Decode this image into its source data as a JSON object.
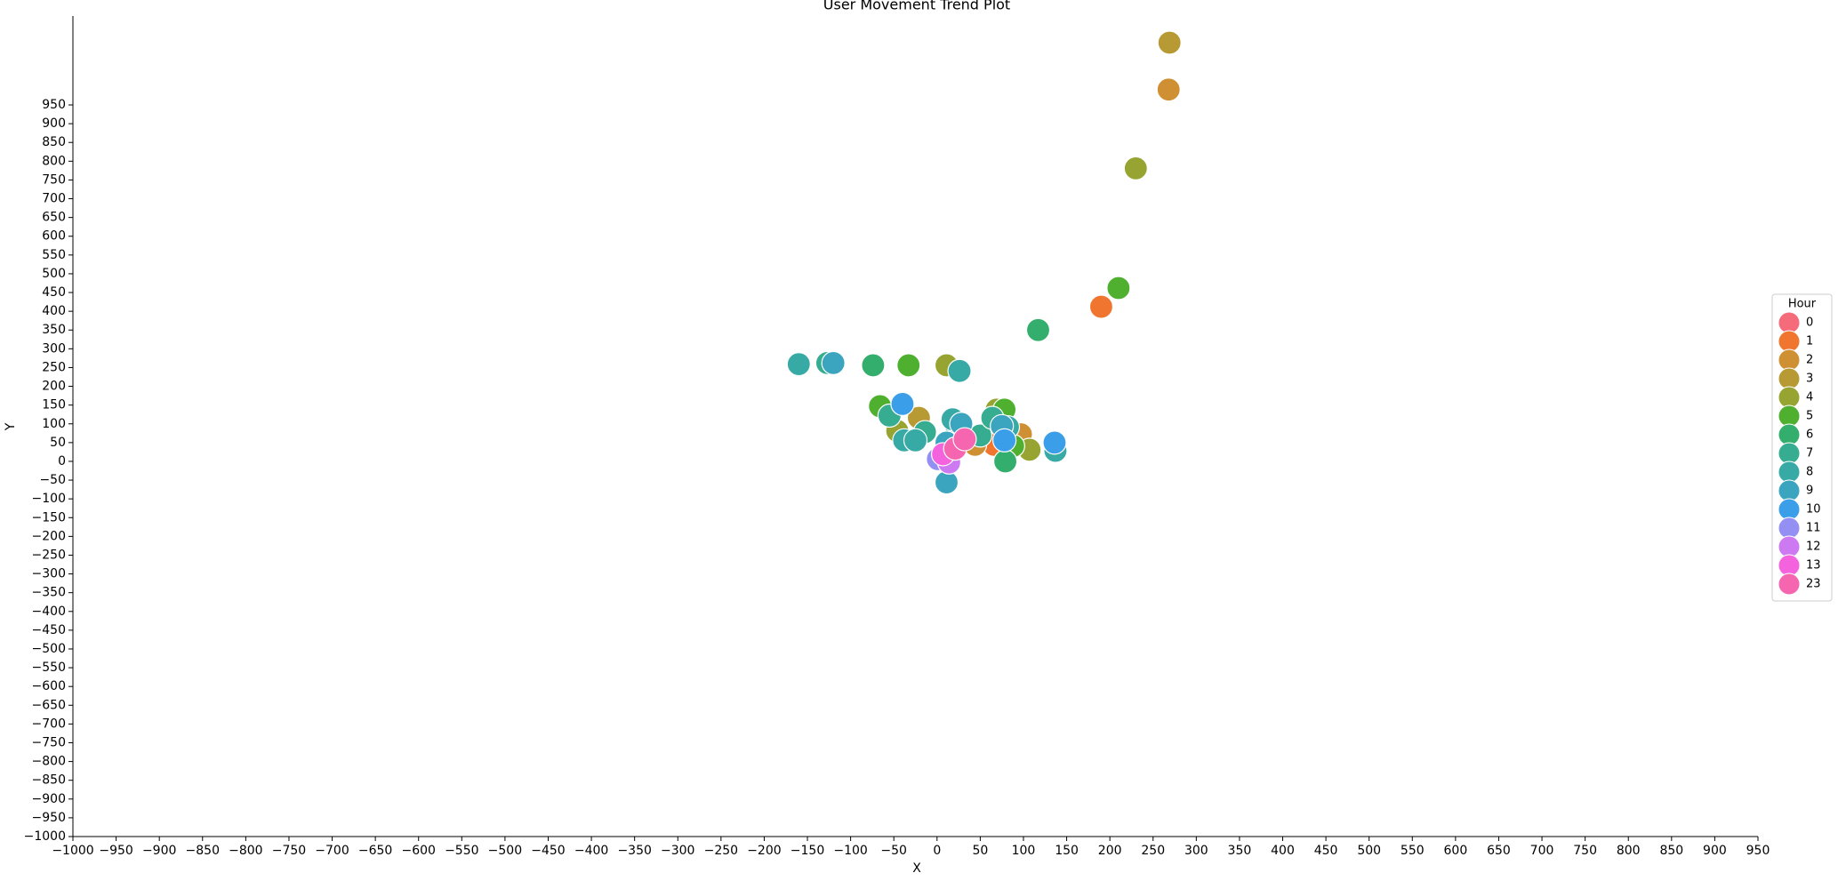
{
  "chart_data": {
    "type": "scatter",
    "title": "User Movement Trend Plot",
    "x_label": "X",
    "y_label": "Y",
    "legend_title": "Hour",
    "legend_position": "right",
    "xlim": [
      -1000,
      950
    ],
    "ylim": [
      -1000,
      1187
    ],
    "xticks": [
      {
        "value": -1000,
        "label": "−1000"
      },
      {
        "value": -950,
        "label": "−950"
      },
      {
        "value": -900,
        "label": "−900"
      },
      {
        "value": -850,
        "label": "−850"
      },
      {
        "value": -800,
        "label": "−800"
      },
      {
        "value": -750,
        "label": "−750"
      },
      {
        "value": -700,
        "label": "−700"
      },
      {
        "value": -650,
        "label": "−650"
      },
      {
        "value": -600,
        "label": "−600"
      },
      {
        "value": -550,
        "label": "−550"
      },
      {
        "value": -500,
        "label": "−500"
      },
      {
        "value": -450,
        "label": "−450"
      },
      {
        "value": -400,
        "label": "−400"
      },
      {
        "value": -350,
        "label": "−350"
      },
      {
        "value": -300,
        "label": "−300"
      },
      {
        "value": -250,
        "label": "−250"
      },
      {
        "value": -200,
        "label": "−200"
      },
      {
        "value": -150,
        "label": "−150"
      },
      {
        "value": -100,
        "label": "−100"
      },
      {
        "value": -50,
        "label": "−50"
      },
      0,
      50,
      100,
      150,
      200,
      250,
      300,
      350,
      400,
      450,
      500,
      550,
      600,
      650,
      700,
      750,
      800,
      850,
      900,
      950
    ],
    "yticks": [
      {
        "value": -1000,
        "label": "−1000"
      },
      {
        "value": -950,
        "label": "−950"
      },
      {
        "value": -900,
        "label": "−900"
      },
      {
        "value": -850,
        "label": "−850"
      },
      {
        "value": -800,
        "label": "−800"
      },
      {
        "value": -750,
        "label": "−750"
      },
      {
        "value": -700,
        "label": "−700"
      },
      {
        "value": -650,
        "label": "−650"
      },
      {
        "value": -600,
        "label": "−600"
      },
      {
        "value": -550,
        "label": "−550"
      },
      {
        "value": -500,
        "label": "−500"
      },
      {
        "value": -450,
        "label": "−450"
      },
      {
        "value": -400,
        "label": "−400"
      },
      {
        "value": -350,
        "label": "−350"
      },
      {
        "value": -300,
        "label": "−300"
      },
      {
        "value": -250,
        "label": "−250"
      },
      {
        "value": -200,
        "label": "−200"
      },
      {
        "value": -150,
        "label": "−150"
      },
      {
        "value": -100,
        "label": "−100"
      },
      {
        "value": -50,
        "label": "−50"
      },
      0,
      50,
      100,
      150,
      200,
      250,
      300,
      350,
      400,
      450,
      500,
      550,
      600,
      650,
      700,
      750,
      800,
      850,
      900,
      950
    ],
    "series": [
      {
        "name": "0",
        "color": "#f66b7a",
        "x": [
          14
        ],
        "values": [
          31
        ]
      },
      {
        "name": "1",
        "color": "#f0762f",
        "x": [
          190,
          66
        ],
        "values": [
          412,
          44
        ]
      },
      {
        "name": "2",
        "color": "#cf8f33",
        "x": [
          268,
          44,
          97
        ],
        "values": [
          991,
          44,
          72
        ]
      },
      {
        "name": "3",
        "color": "#b79a33",
        "x": [
          269,
          -21
        ],
        "values": [
          1116,
          116
        ]
      },
      {
        "name": "4",
        "color": "#97a431",
        "x": [
          230,
          11,
          -46,
          69,
          107
        ],
        "values": [
          781,
          256,
          81,
          138,
          31
        ]
      },
      {
        "name": "5",
        "color": "#4fb030",
        "x": [
          210,
          -33,
          -66,
          78,
          88
        ],
        "values": [
          462,
          256,
          147,
          138,
          41
        ]
      },
      {
        "name": "6",
        "color": "#34ae6d",
        "x": [
          117,
          -74,
          79
        ],
        "values": [
          350,
          256,
          0
        ]
      },
      {
        "name": "7",
        "color": "#36ad90",
        "x": [
          -127,
          -55,
          -14,
          21,
          50,
          64
        ],
        "values": [
          262,
          122,
          78,
          100,
          69,
          116
        ]
      },
      {
        "name": "8",
        "color": "#38aaa6",
        "x": [
          -160,
          26,
          -38,
          -25,
          18,
          82,
          137
        ],
        "values": [
          259,
          241,
          56,
          56,
          112,
          91,
          28
        ]
      },
      {
        "name": "9",
        "color": "#3ba4bf",
        "x": [
          -120,
          11,
          11,
          75,
          28
        ],
        "values": [
          262,
          50,
          -56,
          94,
          100
        ]
      },
      {
        "name": "10",
        "color": "#3b9ee8",
        "x": [
          -40,
          78,
          136
        ],
        "values": [
          153,
          56,
          50
        ]
      },
      {
        "name": "11",
        "color": "#9490f3",
        "x": [
          1
        ],
        "values": [
          6
        ]
      },
      {
        "name": "12",
        "color": "#cc79f2",
        "x": [
          14
        ],
        "values": [
          -3
        ]
      },
      {
        "name": "13",
        "color": "#f462dd",
        "x": [
          7
        ],
        "values": [
          19
        ]
      },
      {
        "name": "23",
        "color": "#f565b0",
        "x": [
          21,
          32
        ],
        "values": [
          34,
          59
        ]
      }
    ]
  }
}
